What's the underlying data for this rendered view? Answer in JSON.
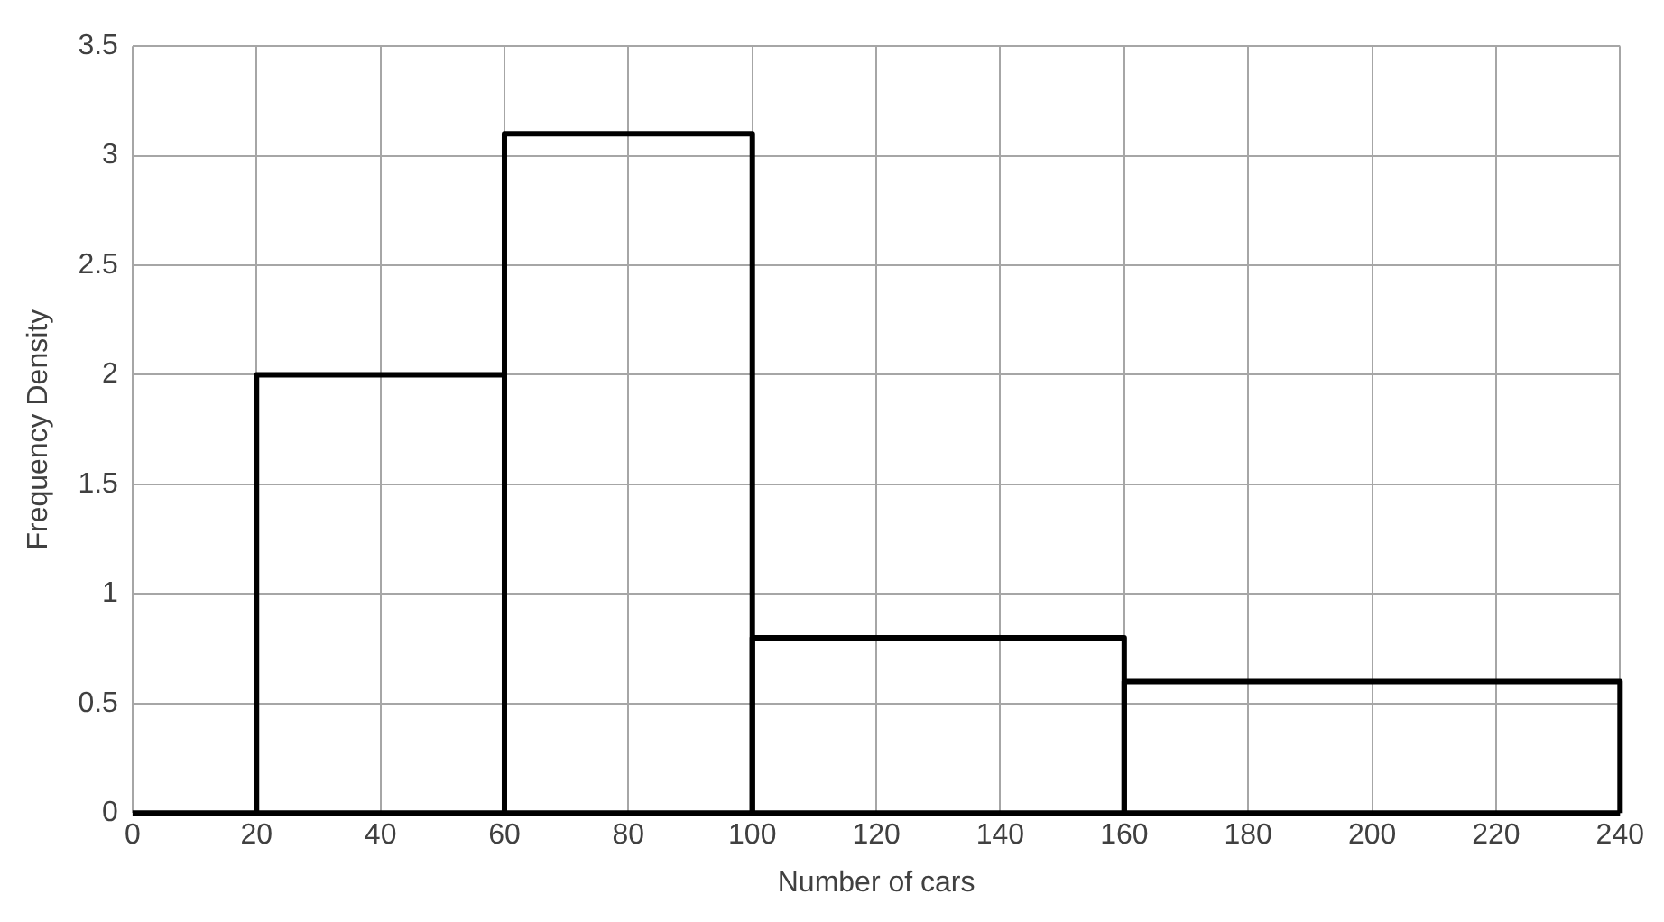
{
  "chart_data": {
    "type": "histogram",
    "xlabel": "Number of cars",
    "ylabel": "Frequency Density",
    "bins": [
      20,
      60,
      100,
      160,
      240
    ],
    "values": [
      2,
      3.1,
      0.8,
      0.6
    ],
    "color": "#000000",
    "xlim": [
      0,
      240
    ],
    "xticks": [
      0,
      20,
      40,
      60,
      80,
      100,
      120,
      140,
      160,
      180,
      200,
      220,
      240
    ],
    "ylim": [
      0,
      3.5
    ],
    "yticks": [
      0,
      0.5,
      1,
      1.5,
      2,
      2.5,
      3,
      3.5
    ],
    "grid": true,
    "legend": false
  }
}
